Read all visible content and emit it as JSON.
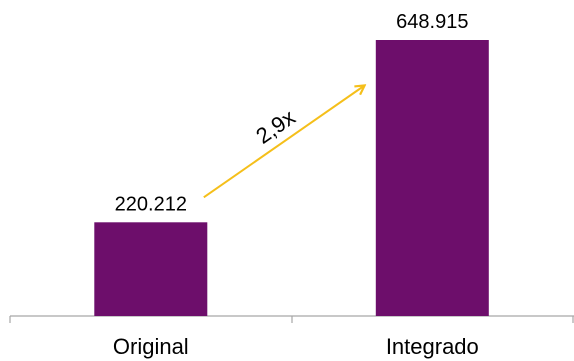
{
  "chart_data": {
    "type": "bar",
    "categories": [
      "Original",
      "Integrado"
    ],
    "values": [
      220212,
      648915
    ],
    "value_labels": [
      "220.212",
      "648.915"
    ],
    "ylim": [
      0,
      680000
    ],
    "grid": false,
    "colors": {
      "bar": "#6d0e6b",
      "axis": "#a6a6a6",
      "arrow": "#f5bf1a"
    },
    "annotation": {
      "text": "2,9x",
      "from_category": "Original",
      "to_category": "Integrado"
    }
  }
}
